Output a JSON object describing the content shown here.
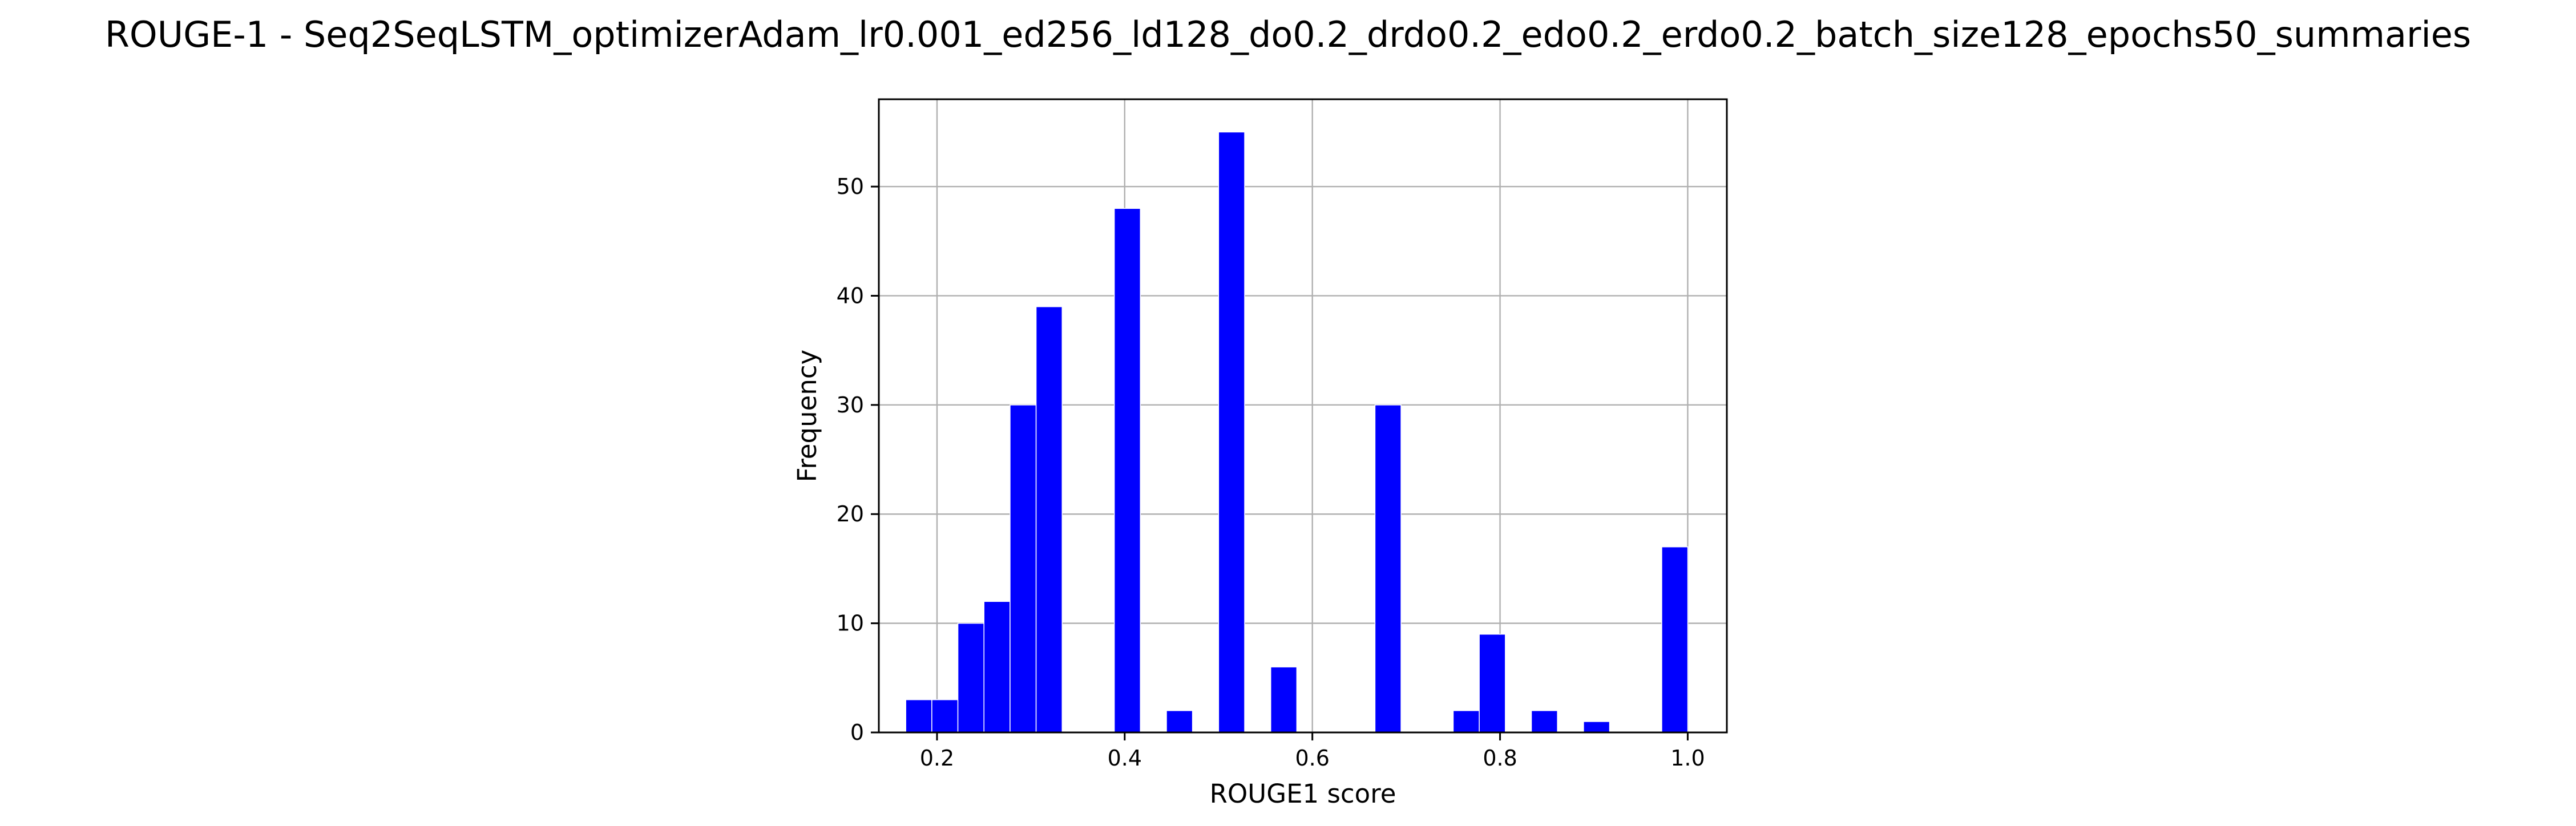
{
  "chart_data": {
    "type": "bar",
    "title": "ROUGE-1 - Seq2SeqLSTM_optimizerAdam_lr0.001_ed256_ld128_do0.2_drdo0.2_edo0.2_erdo0.2_batch_size128_epochs50_summaries",
    "xlabel": "ROUGE1 score",
    "ylabel": "Frequency",
    "xlim": [
      0.138,
      1.0417
    ],
    "ylim": [
      0,
      58
    ],
    "xticks": [
      0.2,
      0.4,
      0.6,
      0.8,
      1.0
    ],
    "xtick_labels": [
      "0.2",
      "0.4",
      "0.6",
      "0.8",
      "1.0"
    ],
    "yticks": [
      0,
      10,
      20,
      30,
      40,
      50
    ],
    "ytick_labels": [
      "0",
      "10",
      "20",
      "30",
      "40",
      "50"
    ],
    "grid": true,
    "bar_color": "#0000ff",
    "bin_start": 0.1667,
    "bin_width": 0.02778,
    "values": [
      3,
      3,
      10,
      12,
      30,
      39,
      0,
      0,
      48,
      0,
      2,
      0,
      55,
      0,
      6,
      0,
      0,
      0,
      30,
      0,
      0,
      2,
      9,
      0,
      2,
      0,
      1,
      0,
      0,
      17
    ]
  }
}
